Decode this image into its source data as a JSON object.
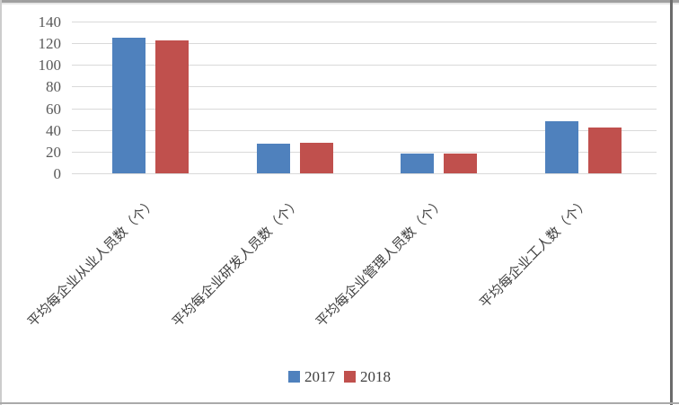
{
  "chart_data": {
    "type": "bar",
    "title": "",
    "categories": [
      "平均每企业从业人员数（个）",
      "平均每企业研发人员数（个）",
      "平均每企业管理人员数（个）",
      "平均每企业工人数（个）"
    ],
    "series": [
      {
        "name": "2017",
        "color": "#4F81BD",
        "values": [
          125,
          27,
          18,
          48
        ]
      },
      {
        "name": "2018",
        "color": "#C0504D",
        "values": [
          123,
          28,
          18,
          42
        ]
      }
    ],
    "ylim": [
      0,
      140
    ],
    "ytick_step": 20,
    "ytick_labels": [
      "140",
      "120",
      "100",
      "80",
      "60",
      "40",
      "20",
      "0"
    ],
    "grid": true,
    "legend_position": "bottom",
    "gridline_color": "#d9d9d9",
    "axis_tick_color": "#595959",
    "category_label_color": "#404040",
    "legend": {
      "items": [
        {
          "label": "2017",
          "color": "#4F81BD"
        },
        {
          "label": "2018",
          "color": "#C0504D"
        }
      ]
    }
  }
}
